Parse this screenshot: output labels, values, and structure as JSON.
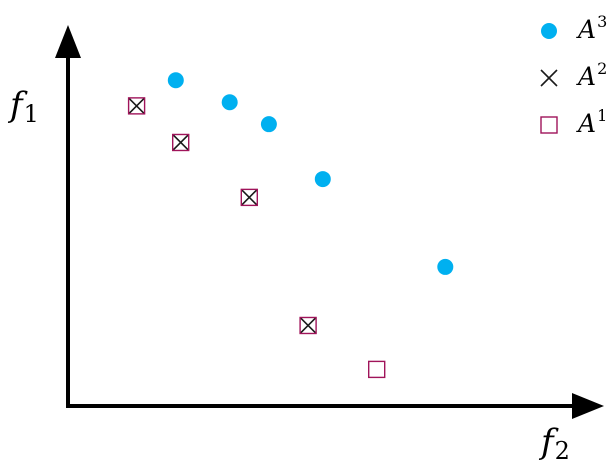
{
  "chart_data": {
    "type": "scatter",
    "xlabel": {
      "base": "f",
      "sub": "2"
    },
    "ylabel": {
      "base": "f",
      "sub": "1"
    },
    "xlim": [
      0,
      10
    ],
    "ylim": [
      0,
      10
    ],
    "grid": false,
    "legend_position": "top-right",
    "series": [
      {
        "name": "A^3",
        "label_base": "A",
        "label_sup": "3",
        "marker": "circle",
        "color": "#00b0f0",
        "points": [
          [
            2.2,
            8.9
          ],
          [
            3.3,
            8.3
          ],
          [
            4.1,
            7.7
          ],
          [
            5.2,
            6.2
          ],
          [
            7.7,
            3.8
          ]
        ]
      },
      {
        "name": "A^2",
        "label_base": "A",
        "label_sup": "2",
        "marker": "cross",
        "color": "#1a1a1a",
        "points": [
          [
            1.4,
            8.2
          ],
          [
            2.3,
            7.2
          ],
          [
            3.7,
            5.7
          ],
          [
            4.9,
            2.2
          ]
        ]
      },
      {
        "name": "A^1",
        "label_base": "A",
        "label_sup": "1",
        "marker": "square",
        "color": "#a0145a",
        "points": [
          [
            1.4,
            8.2
          ],
          [
            2.3,
            7.2
          ],
          [
            3.7,
            5.7
          ],
          [
            4.9,
            2.2
          ],
          [
            6.3,
            1.0
          ]
        ]
      }
    ]
  }
}
